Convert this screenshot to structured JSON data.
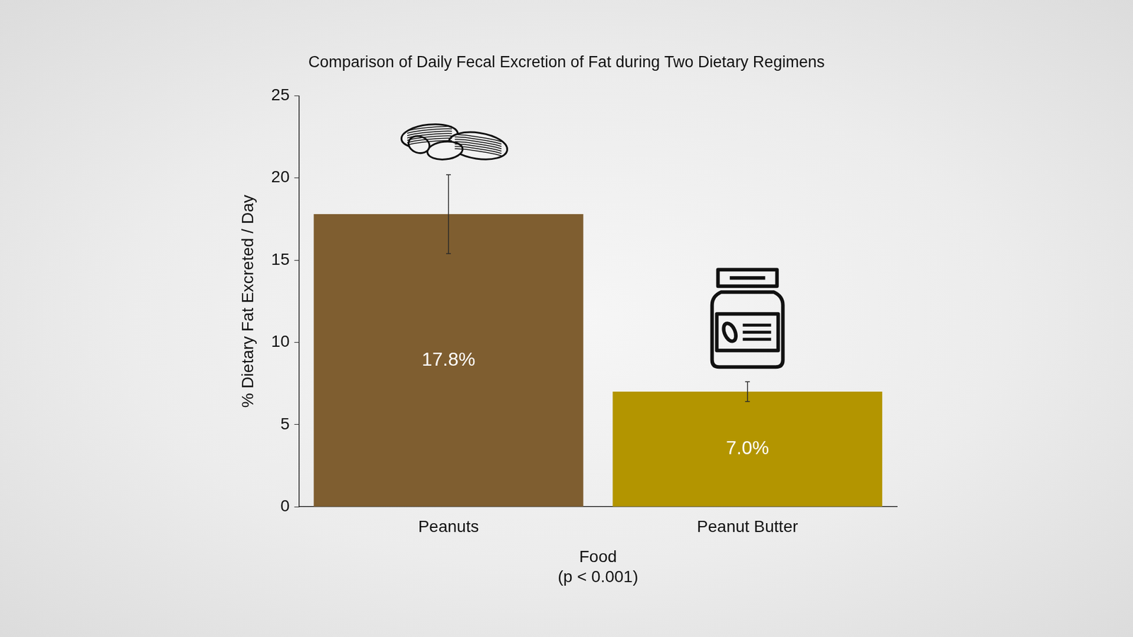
{
  "chart_data": {
    "type": "bar",
    "title": "Comparison of Daily Fecal Excretion of Fat during Two Dietary Regimens",
    "xlabel": "Food",
    "annotation": "(p < 0.001)",
    "ylabel": "% Dietary Fat Excreted / Day",
    "categories": [
      "Peanuts",
      "Peanut Butter"
    ],
    "values": [
      17.8,
      7.0
    ],
    "value_labels": [
      "17.8%",
      "7.0%"
    ],
    "errors": [
      2.4,
      0.6
    ],
    "colors": [
      "#7f5e30",
      "#b39500"
    ],
    "ylim": [
      0,
      25
    ],
    "yticks": [
      0,
      5,
      10,
      15,
      20,
      25
    ],
    "grid": false,
    "data_labels": true
  }
}
